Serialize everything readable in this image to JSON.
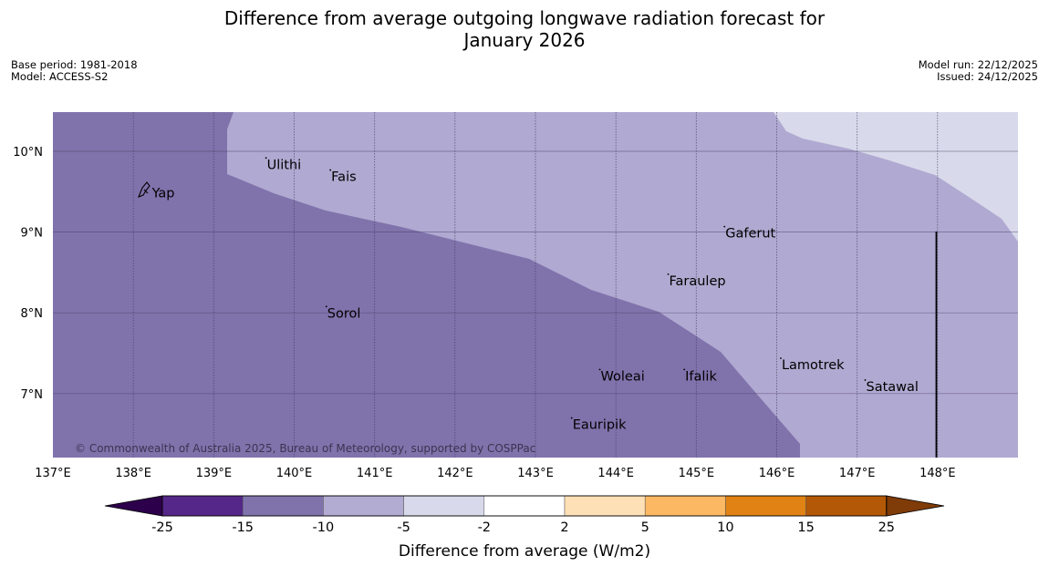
{
  "header": {
    "title_line1": "Difference from average outgoing longwave radiation forecast for",
    "title_line2": "January 2026",
    "base_period": "Base period: 1981-2018",
    "model": "Model: ACCESS-S2",
    "model_run": "Model run: 22/12/2025",
    "issued": "Issued: 24/12/2025"
  },
  "map": {
    "extent": {
      "lon_min": 137,
      "lon_max": 149,
      "lat_min": 6.2,
      "lat_max": 10.5
    },
    "x_ticks": [
      "137°E",
      "138°E",
      "139°E",
      "140°E",
      "141°E",
      "142°E",
      "143°E",
      "144°E",
      "145°E",
      "146°E",
      "147°E",
      "148°E"
    ],
    "y_ticks": [
      "10°N",
      "9°N",
      "8°N",
      "7°N"
    ],
    "places": [
      {
        "name": "Yap",
        "lon": 138.22,
        "lat": 9.5
      },
      {
        "name": "Ulithi",
        "lon": 139.65,
        "lat": 9.85
      },
      {
        "name": "Fais",
        "lon": 140.45,
        "lat": 9.7
      },
      {
        "name": "Gaferut",
        "lon": 145.35,
        "lat": 9.0
      },
      {
        "name": "Faraulep",
        "lon": 144.65,
        "lat": 8.41
      },
      {
        "name": "Sorol",
        "lon": 140.4,
        "lat": 8.01
      },
      {
        "name": "Lamotrek",
        "lon": 146.05,
        "lat": 7.37
      },
      {
        "name": "Woleai",
        "lon": 143.8,
        "lat": 7.23
      },
      {
        "name": "Ifalik",
        "lon": 144.85,
        "lat": 7.23
      },
      {
        "name": "Satawal",
        "lon": 147.1,
        "lat": 7.1
      },
      {
        "name": "Eauripik",
        "lon": 143.45,
        "lat": 6.63
      }
    ],
    "copyright": "© Commonwealth of Australia 2025, Bureau of Meteorology, supported by COSPPac"
  },
  "colorbar": {
    "title": "Difference from average (W/m2)",
    "tick_labels": [
      "-25",
      "-15",
      "-10",
      "-5",
      "-2",
      "2",
      "5",
      "10",
      "15",
      "25"
    ],
    "colors": [
      "#2d004b",
      "#542788",
      "#8073ac",
      "#b2abd2",
      "#d8daeb",
      "#ffffff",
      "#fee0b6",
      "#fdb863",
      "#e08214",
      "#b35806",
      "#7f3b08"
    ]
  }
}
